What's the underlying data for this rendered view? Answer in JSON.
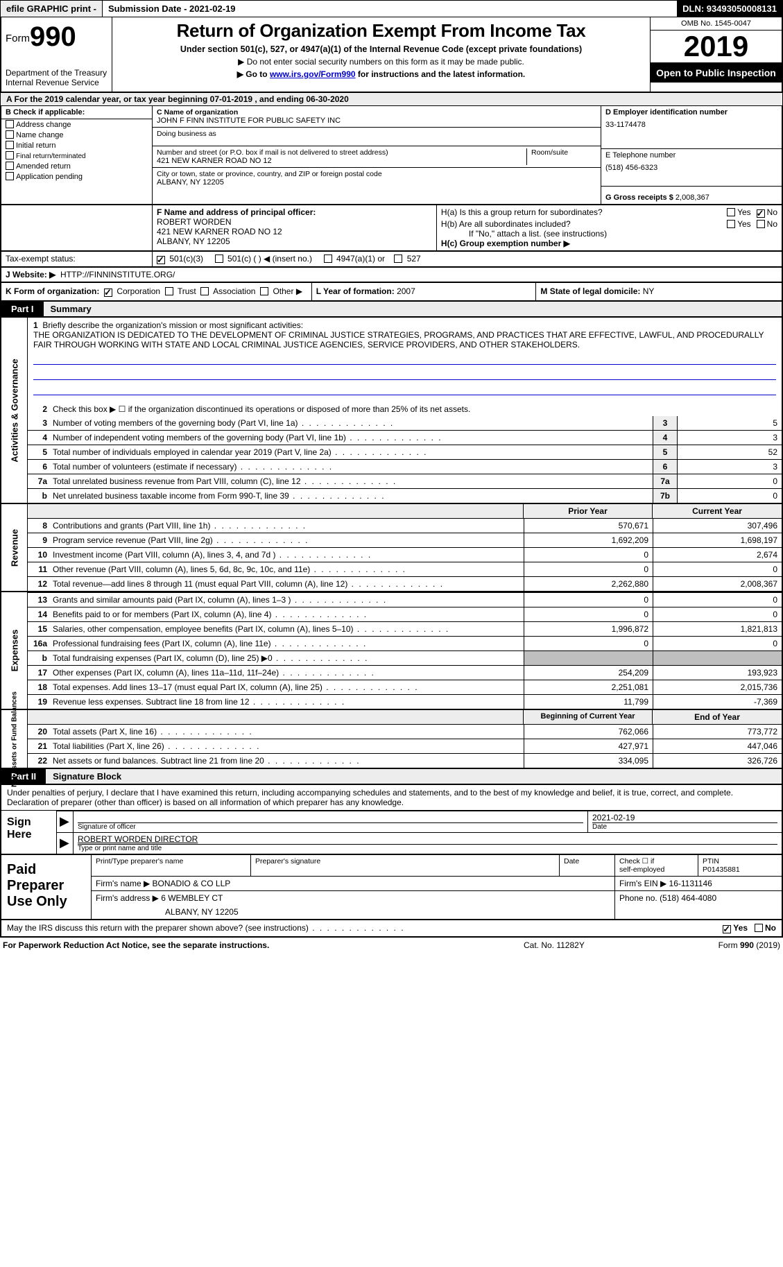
{
  "topbar": {
    "efile": "efile GRAPHIC print - ",
    "submission": "Submission Date - 2021-02-19",
    "dln": "DLN: 93493050008131"
  },
  "header": {
    "form_prefix": "Form",
    "form_number": "990",
    "dept1": "Department of the Treasury",
    "dept2": "Internal Revenue Service",
    "title": "Return of Organization Exempt From Income Tax",
    "sub": "Under section 501(c), 527, or 4947(a)(1) of the Internal Revenue Code (except private foundations)",
    "note1": "▶ Do not enter social security numbers on this form as it may be made public.",
    "note2_pre": "▶ Go to ",
    "note2_link": "www.irs.gov/Form990",
    "note2_post": " for instructions and the latest information.",
    "omb": "OMB No. 1545-0047",
    "year": "2019",
    "inspection": "Open to Public Inspection"
  },
  "taxyear": "A For the 2019 calendar year, or tax year beginning 07-01-2019    , and ending 06-30-2020",
  "B": {
    "header": "B Check if applicable:",
    "items": [
      "Address change",
      "Name change",
      "Initial return",
      "Final return/terminated",
      "Amended return",
      "Application pending"
    ]
  },
  "C": {
    "label_name": "C Name of organization",
    "name": "JOHN F FINN INSTITUTE FOR PUBLIC SAFETY INC",
    "dba_label": "Doing business as",
    "addr_label": "Number and street (or P.O. box if mail is not delivered to street address)",
    "room_label": "Room/suite",
    "addr": "421 NEW KARNER ROAD NO 12",
    "city_label": "City or town, state or province, country, and ZIP or foreign postal code",
    "city": "ALBANY, NY  12205"
  },
  "D": {
    "label": "D Employer identification number",
    "value": "33-1174478"
  },
  "E": {
    "label": "E Telephone number",
    "value": "(518) 456-6323"
  },
  "G": {
    "label": "G Gross receipts $",
    "value": "2,008,367"
  },
  "F": {
    "label": "F  Name and address of principal officer:",
    "name": "ROBERT WORDEN",
    "addr": "421 NEW KARNER ROAD NO 12",
    "city": "ALBANY, NY  12205"
  },
  "H": {
    "a": "H(a)  Is this a group return for subordinates?",
    "b": "H(b)  Are all subordinates included?",
    "b_note": "If \"No,\" attach a list. (see instructions)",
    "c": "H(c)  Group exemption number ▶",
    "yes": "Yes",
    "no": "No"
  },
  "taxexempt": {
    "label": "Tax-exempt status:",
    "a": "501(c)(3)",
    "b": "501(c) (  ) ◀ (insert no.)",
    "c": "4947(a)(1) or",
    "d": "527"
  },
  "J": {
    "label": "J    Website: ▶",
    "value": "HTTP://FINNINSTITUTE.ORG/"
  },
  "K": {
    "label": "K Form of organization:",
    "corp": "Corporation",
    "trust": "Trust",
    "assoc": "Association",
    "other": "Other ▶"
  },
  "L": {
    "label": "L Year of formation:",
    "value": "2007"
  },
  "M": {
    "label": "M State of legal domicile:",
    "value": "NY"
  },
  "parts": {
    "p1": "Part I",
    "p1_label": "Summary",
    "p2": "Part II",
    "p2_label": "Signature Block"
  },
  "mission": {
    "q": "Briefly describe the organization's mission or most significant activities:",
    "text": "THE ORGANIZATION IS DEDICATED TO THE DEVELOPMENT OF CRIMINAL JUSTICE STRATEGIES, PROGRAMS, AND PRACTICES THAT ARE EFFECTIVE, LAWFUL, AND PROCEDURALLY FAIR THROUGH WORKING WITH STATE AND LOCAL CRIMINAL JUSTICE AGENCIES, SERVICE PROVIDERS, AND OTHER STAKEHOLDERS."
  },
  "line2": "Check this box ▶ ☐  if the organization discontinued its operations or disposed of more than 25% of its net assets.",
  "govlines": [
    {
      "n": "3",
      "d": "Number of voting members of the governing body (Part VI, line 1a)",
      "r": "3",
      "v": "5"
    },
    {
      "n": "4",
      "d": "Number of independent voting members of the governing body (Part VI, line 1b)",
      "r": "4",
      "v": "3"
    },
    {
      "n": "5",
      "d": "Total number of individuals employed in calendar year 2019 (Part V, line 2a)",
      "r": "5",
      "v": "52"
    },
    {
      "n": "6",
      "d": "Total number of volunteers (estimate if necessary)",
      "r": "6",
      "v": "3"
    },
    {
      "n": "7a",
      "d": "Total unrelated business revenue from Part VIII, column (C), line 12",
      "r": "7a",
      "v": "0"
    },
    {
      "n": "b",
      "d": "Net unrelated business taxable income from Form 990-T, line 39",
      "r": "7b",
      "v": "0"
    }
  ],
  "col_prior": "Prior Year",
  "col_current": "Current Year",
  "revenue": [
    {
      "n": "8",
      "d": "Contributions and grants (Part VIII, line 1h)",
      "p": "570,671",
      "c": "307,496"
    },
    {
      "n": "9",
      "d": "Program service revenue (Part VIII, line 2g)",
      "p": "1,692,209",
      "c": "1,698,197"
    },
    {
      "n": "10",
      "d": "Investment income (Part VIII, column (A), lines 3, 4, and 7d )",
      "p": "0",
      "c": "2,674"
    },
    {
      "n": "11",
      "d": "Other revenue (Part VIII, column (A), lines 5, 6d, 8c, 9c, 10c, and 11e)",
      "p": "0",
      "c": "0"
    },
    {
      "n": "12",
      "d": "Total revenue—add lines 8 through 11 (must equal Part VIII, column (A), line 12)",
      "p": "2,262,880",
      "c": "2,008,367"
    }
  ],
  "expenses": [
    {
      "n": "13",
      "d": "Grants and similar amounts paid (Part IX, column (A), lines 1–3 )",
      "p": "0",
      "c": "0"
    },
    {
      "n": "14",
      "d": "Benefits paid to or for members (Part IX, column (A), line 4)",
      "p": "0",
      "c": "0"
    },
    {
      "n": "15",
      "d": "Salaries, other compensation, employee benefits (Part IX, column (A), lines 5–10)",
      "p": "1,996,872",
      "c": "1,821,813"
    },
    {
      "n": "16a",
      "d": "Professional fundraising fees (Part IX, column (A), line 11e)",
      "p": "0",
      "c": "0"
    },
    {
      "n": "b",
      "d": "Total fundraising expenses (Part IX, column (D), line 25) ▶0",
      "p": "__gray__",
      "c": "__gray__"
    },
    {
      "n": "17",
      "d": "Other expenses (Part IX, column (A), lines 11a–11d, 11f–24e)",
      "p": "254,209",
      "c": "193,923"
    },
    {
      "n": "18",
      "d": "Total expenses. Add lines 13–17 (must equal Part IX, column (A), line 25)",
      "p": "2,251,081",
      "c": "2,015,736"
    },
    {
      "n": "19",
      "d": "Revenue less expenses. Subtract line 18 from line 12",
      "p": "11,799",
      "c": "-7,369"
    }
  ],
  "col_begin": "Beginning of Current Year",
  "col_end": "End of Year",
  "balances": [
    {
      "n": "20",
      "d": "Total assets (Part X, line 16)",
      "p": "762,066",
      "c": "773,772"
    },
    {
      "n": "21",
      "d": "Total liabilities (Part X, line 26)",
      "p": "427,971",
      "c": "447,046"
    },
    {
      "n": "22",
      "d": "Net assets or fund balances. Subtract line 21 from line 20",
      "p": "334,095",
      "c": "326,726"
    }
  ],
  "vlabels": {
    "gov": "Activities & Governance",
    "rev": "Revenue",
    "exp": "Expenses",
    "bal": "Net Assets or Fund Balances"
  },
  "perjury": "Under penalties of perjury, I declare that I have examined this return, including accompanying schedules and statements, and to the best of my knowledge and belief, it is true, correct, and complete. Declaration of preparer (other than officer) is based on all information of which preparer has any knowledge.",
  "sign": {
    "here": "Sign Here",
    "sig_label": "Signature of officer",
    "date_label": "Date",
    "date": "2021-02-19",
    "name": "ROBERT WORDEN  DIRECTOR",
    "name_label": "Type or print name and title"
  },
  "prep": {
    "label": "Paid Preparer Use Only",
    "h1": "Print/Type preparer's name",
    "h2": "Preparer's signature",
    "h3": "Date",
    "h4_a": "Check ☐ if",
    "h4_b": "self-employed",
    "h5": "PTIN",
    "ptin": "P01435881",
    "firm_label": "Firm's name      ▶",
    "firm": "BONADIO & CO LLP",
    "ein_label": "Firm's EIN ▶",
    "ein": "16-1131146",
    "addr_label": "Firm's address ▶",
    "addr": "6 WEMBLEY CT",
    "addr2": "ALBANY, NY  12205",
    "phone_label": "Phone no.",
    "phone": "(518) 464-4080"
  },
  "discuss": {
    "q": "May the IRS discuss this return with the preparer shown above? (see instructions)",
    "yes": "Yes",
    "no": "No"
  },
  "foot": {
    "l": "For Paperwork Reduction Act Notice, see the separate instructions.",
    "m": "Cat. No. 11282Y",
    "r": "Form 990 (2019)"
  }
}
